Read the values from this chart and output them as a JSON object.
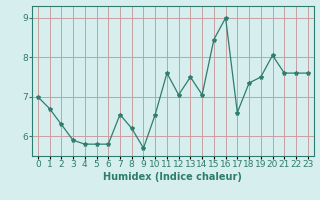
{
  "x": [
    0,
    1,
    2,
    3,
    4,
    5,
    6,
    7,
    8,
    9,
    10,
    11,
    12,
    13,
    14,
    15,
    16,
    17,
    18,
    19,
    20,
    21,
    22,
    23
  ],
  "y": [
    7.0,
    6.7,
    6.3,
    5.9,
    5.8,
    5.8,
    5.8,
    6.55,
    6.2,
    5.7,
    6.55,
    7.6,
    7.05,
    7.5,
    7.05,
    8.45,
    9.0,
    6.6,
    7.35,
    7.5,
    8.05,
    7.6,
    7.6,
    7.6
  ],
  "line_color": "#2e7d6e",
  "marker": "*",
  "marker_size": 3,
  "bg_color": "#d6eeee",
  "grid_color": "#c8a0a0",
  "xlabel": "Humidex (Indice chaleur)",
  "ylim": [
    5.5,
    9.3
  ],
  "xlim": [
    -0.5,
    23.5
  ],
  "yticks": [
    6,
    7,
    8,
    9
  ],
  "xtick_labels": [
    "0",
    "1",
    "2",
    "3",
    "4",
    "5",
    "6",
    "7",
    "8",
    "9",
    "10",
    "11",
    "12",
    "13",
    "14",
    "15",
    "16",
    "17",
    "18",
    "19",
    "20",
    "21",
    "22",
    "23"
  ],
  "label_fontsize": 7,
  "tick_fontsize": 6.5
}
